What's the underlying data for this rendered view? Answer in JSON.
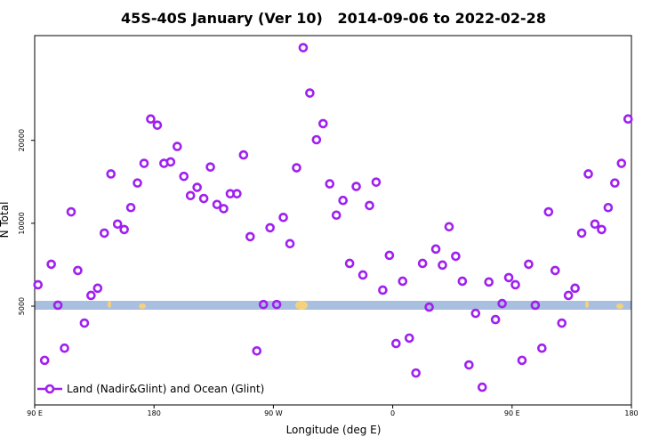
{
  "chart_data": {
    "type": "scatter",
    "title": "45S-40S January (Ver 10)   2014-09-06 to 2022-02-28",
    "xlabel": "Longitude (deg E)",
    "ylabel": "N Total",
    "xlim": [
      90,
      540
    ],
    "xticks": [
      {
        "value": 90,
        "label": "90 E"
      },
      180,
      {
        "value": 270,
        "label": "90 W"
      },
      {
        "value": 360,
        "label": "0"
      },
      {
        "value": 450,
        "label": "90 E"
      },
      {
        "value": 540,
        "label": "180"
      }
    ],
    "ylim": [
      2190,
      48000
    ],
    "yticks": [
      5000,
      10000,
      20000
    ],
    "log_y": true,
    "grid": false,
    "legend": "lower left",
    "series": [
      {
        "name": "Land (Nadir&Glint) and Ocean (Glint)",
        "color": "#a020f0",
        "x": [
          92.5,
          97.5,
          102.5,
          107.5,
          112.5,
          117.5,
          122.5,
          127.5,
          132.5,
          137.5,
          142.5,
          147.5,
          152.5,
          157.5,
          162.5,
          167.5,
          172.5,
          177.5,
          182.5,
          187.5,
          192.5,
          197.5,
          202.5,
          207.5,
          212.5,
          217.5,
          222.5,
          227.5,
          232.5,
          237.5,
          242.5,
          247.5,
          252.5,
          257.5,
          262.5,
          267.5,
          272.5,
          277.5,
          282.5,
          287.5,
          292.5,
          297.5,
          302.5,
          307.5,
          312.5,
          317.5,
          322.5,
          327.5,
          332.5,
          337.5,
          342.5,
          347.5,
          352.5,
          357.5,
          362.5,
          367.5,
          372.5,
          377.5,
          382.5,
          387.5,
          392.5,
          397.5,
          402.5,
          407.5,
          412.5,
          417.5,
          422.5,
          427.5,
          432.5,
          437.5,
          442.5,
          447.5,
          452.5,
          457.5,
          462.5,
          467.5,
          472.5,
          477.5,
          482.5,
          487.5,
          492.5,
          497.5,
          502.5,
          507.5,
          512.5,
          517.5,
          522.5,
          527.5,
          532.5,
          537.5
        ],
        "values": [
          5980,
          3180,
          7100,
          5040,
          3520,
          11000,
          6740,
          4340,
          5470,
          5810,
          9210,
          15100,
          9930,
          9490,
          11400,
          14000,
          16500,
          23900,
          22700,
          16500,
          16700,
          19000,
          14800,
          12600,
          13500,
          12300,
          16000,
          11700,
          11300,
          12800,
          12800,
          17700,
          8940,
          3440,
          5070,
          9630,
          5070,
          10500,
          8430,
          15900,
          43400,
          29700,
          20100,
          23000,
          13900,
          10700,
          12100,
          7150,
          13600,
          6490,
          11600,
          14100,
          5720,
          7650,
          3660,
          6160,
          3830,
          2860,
          7150,
          4960,
          8060,
          7050,
          9710,
          7590,
          6160,
          3060,
          4710,
          2540,
          6120,
          4470,
          5110,
          6350,
          5980,
          3180,
          7100,
          5040,
          3520,
          11000,
          6740,
          4340,
          5470,
          5810,
          9210,
          15100,
          9930,
          9490,
          11400,
          14000,
          16500,
          23900
        ]
      }
    ]
  }
}
